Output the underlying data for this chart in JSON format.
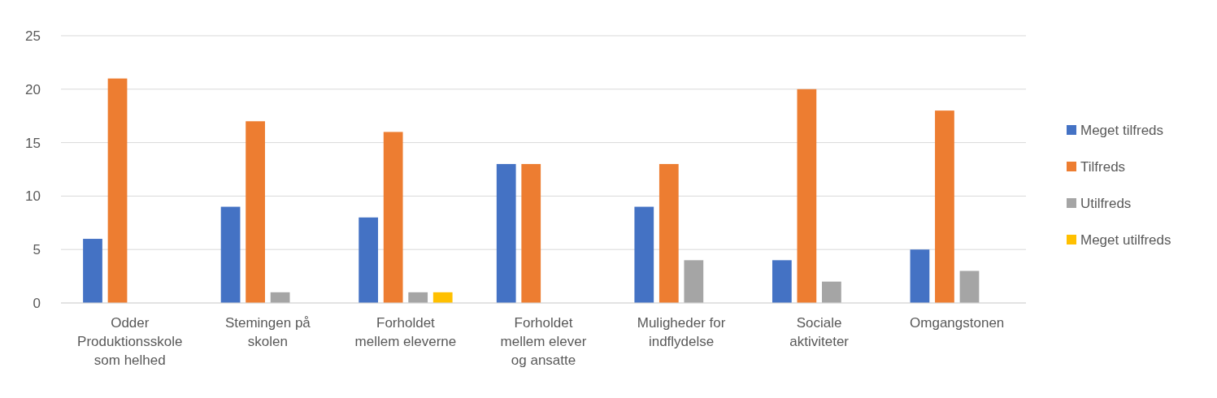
{
  "chart_data": {
    "type": "bar",
    "categories": [
      "Odder Produktionsskole som helhed",
      "Stemingen på skolen",
      "Forholdet mellem eleverne",
      "Forholdet mellem elever og ansatte",
      "Muligheder for indflydelse",
      "Sociale aktiviteter",
      "Omgangstonen"
    ],
    "series": [
      {
        "name": "Meget tilfreds",
        "color": "#4472c4",
        "values": [
          6,
          9,
          8,
          13,
          9,
          4,
          5
        ]
      },
      {
        "name": "Tilfreds",
        "color": "#ed7d31",
        "values": [
          21,
          17,
          16,
          13,
          13,
          20,
          18
        ]
      },
      {
        "name": "Utilfreds",
        "color": "#a5a5a5",
        "values": [
          0,
          1,
          1,
          0,
          4,
          2,
          3
        ]
      },
      {
        "name": "Meget utilfreds",
        "color": "#ffc000",
        "values": [
          0,
          0,
          1,
          0,
          0,
          0,
          0
        ]
      }
    ],
    "ylim": [
      0,
      25
    ],
    "yticks": [
      0,
      5,
      10,
      15,
      20,
      25
    ],
    "grid": "y",
    "legend": "right"
  }
}
